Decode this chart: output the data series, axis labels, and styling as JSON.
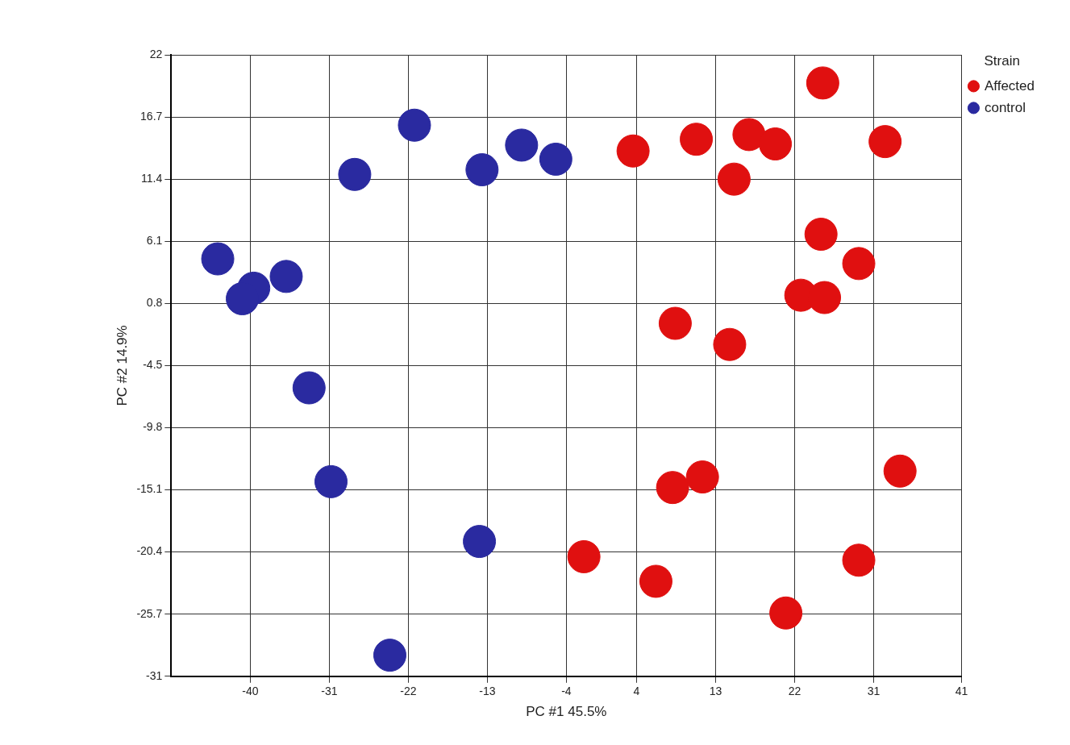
{
  "chart_data": {
    "type": "scatter",
    "xlabel": "PC #1 45.5%",
    "ylabel": "PC #2 14.9%",
    "legend_title": "Strain",
    "legend": "top right",
    "grid": true,
    "marker": "circle",
    "xlim": [
      -49,
      41
    ],
    "xticks": [
      -40,
      -31,
      -22,
      -13,
      -4,
      4,
      13,
      22,
      31,
      41
    ],
    "ylim": [
      -31,
      22
    ],
    "yticks": [
      -31,
      -25.7,
      -20.4,
      -15.1,
      -9.8,
      -4.5,
      0.8,
      6.1,
      11.4,
      16.7,
      22
    ],
    "series": [
      {
        "name": "Affected",
        "color": "#e01010",
        "x": [
          25.2,
          3.6,
          10.8,
          16.8,
          19.8,
          32.3,
          15.1,
          25.0,
          29.3,
          22.7,
          25.4,
          8.4,
          14.6,
          8.1,
          11.5,
          34.0,
          -2.0,
          6.2,
          29.3,
          21.0
        ],
        "values": [
          19.6,
          13.8,
          14.8,
          15.2,
          14.4,
          14.6,
          11.4,
          6.7,
          4.2,
          1.5,
          1.3,
          -0.9,
          -2.7,
          -14.9,
          -14.0,
          -13.5,
          -20.8,
          -22.9,
          -21.1,
          -25.6
        ]
      },
      {
        "name": "control",
        "color": "#2a2aa0",
        "x": [
          -21.3,
          -28.1,
          -9.1,
          -13.6,
          -5.2,
          -43.7,
          -35.9,
          -39.6,
          -40.9,
          -33.3,
          -30.8,
          -13.9,
          -24.1
        ],
        "values": [
          16.0,
          11.8,
          14.3,
          12.2,
          13.1,
          4.6,
          3.1,
          2.1,
          1.2,
          -6.4,
          -14.4,
          -19.5,
          -29.2
        ]
      }
    ]
  }
}
